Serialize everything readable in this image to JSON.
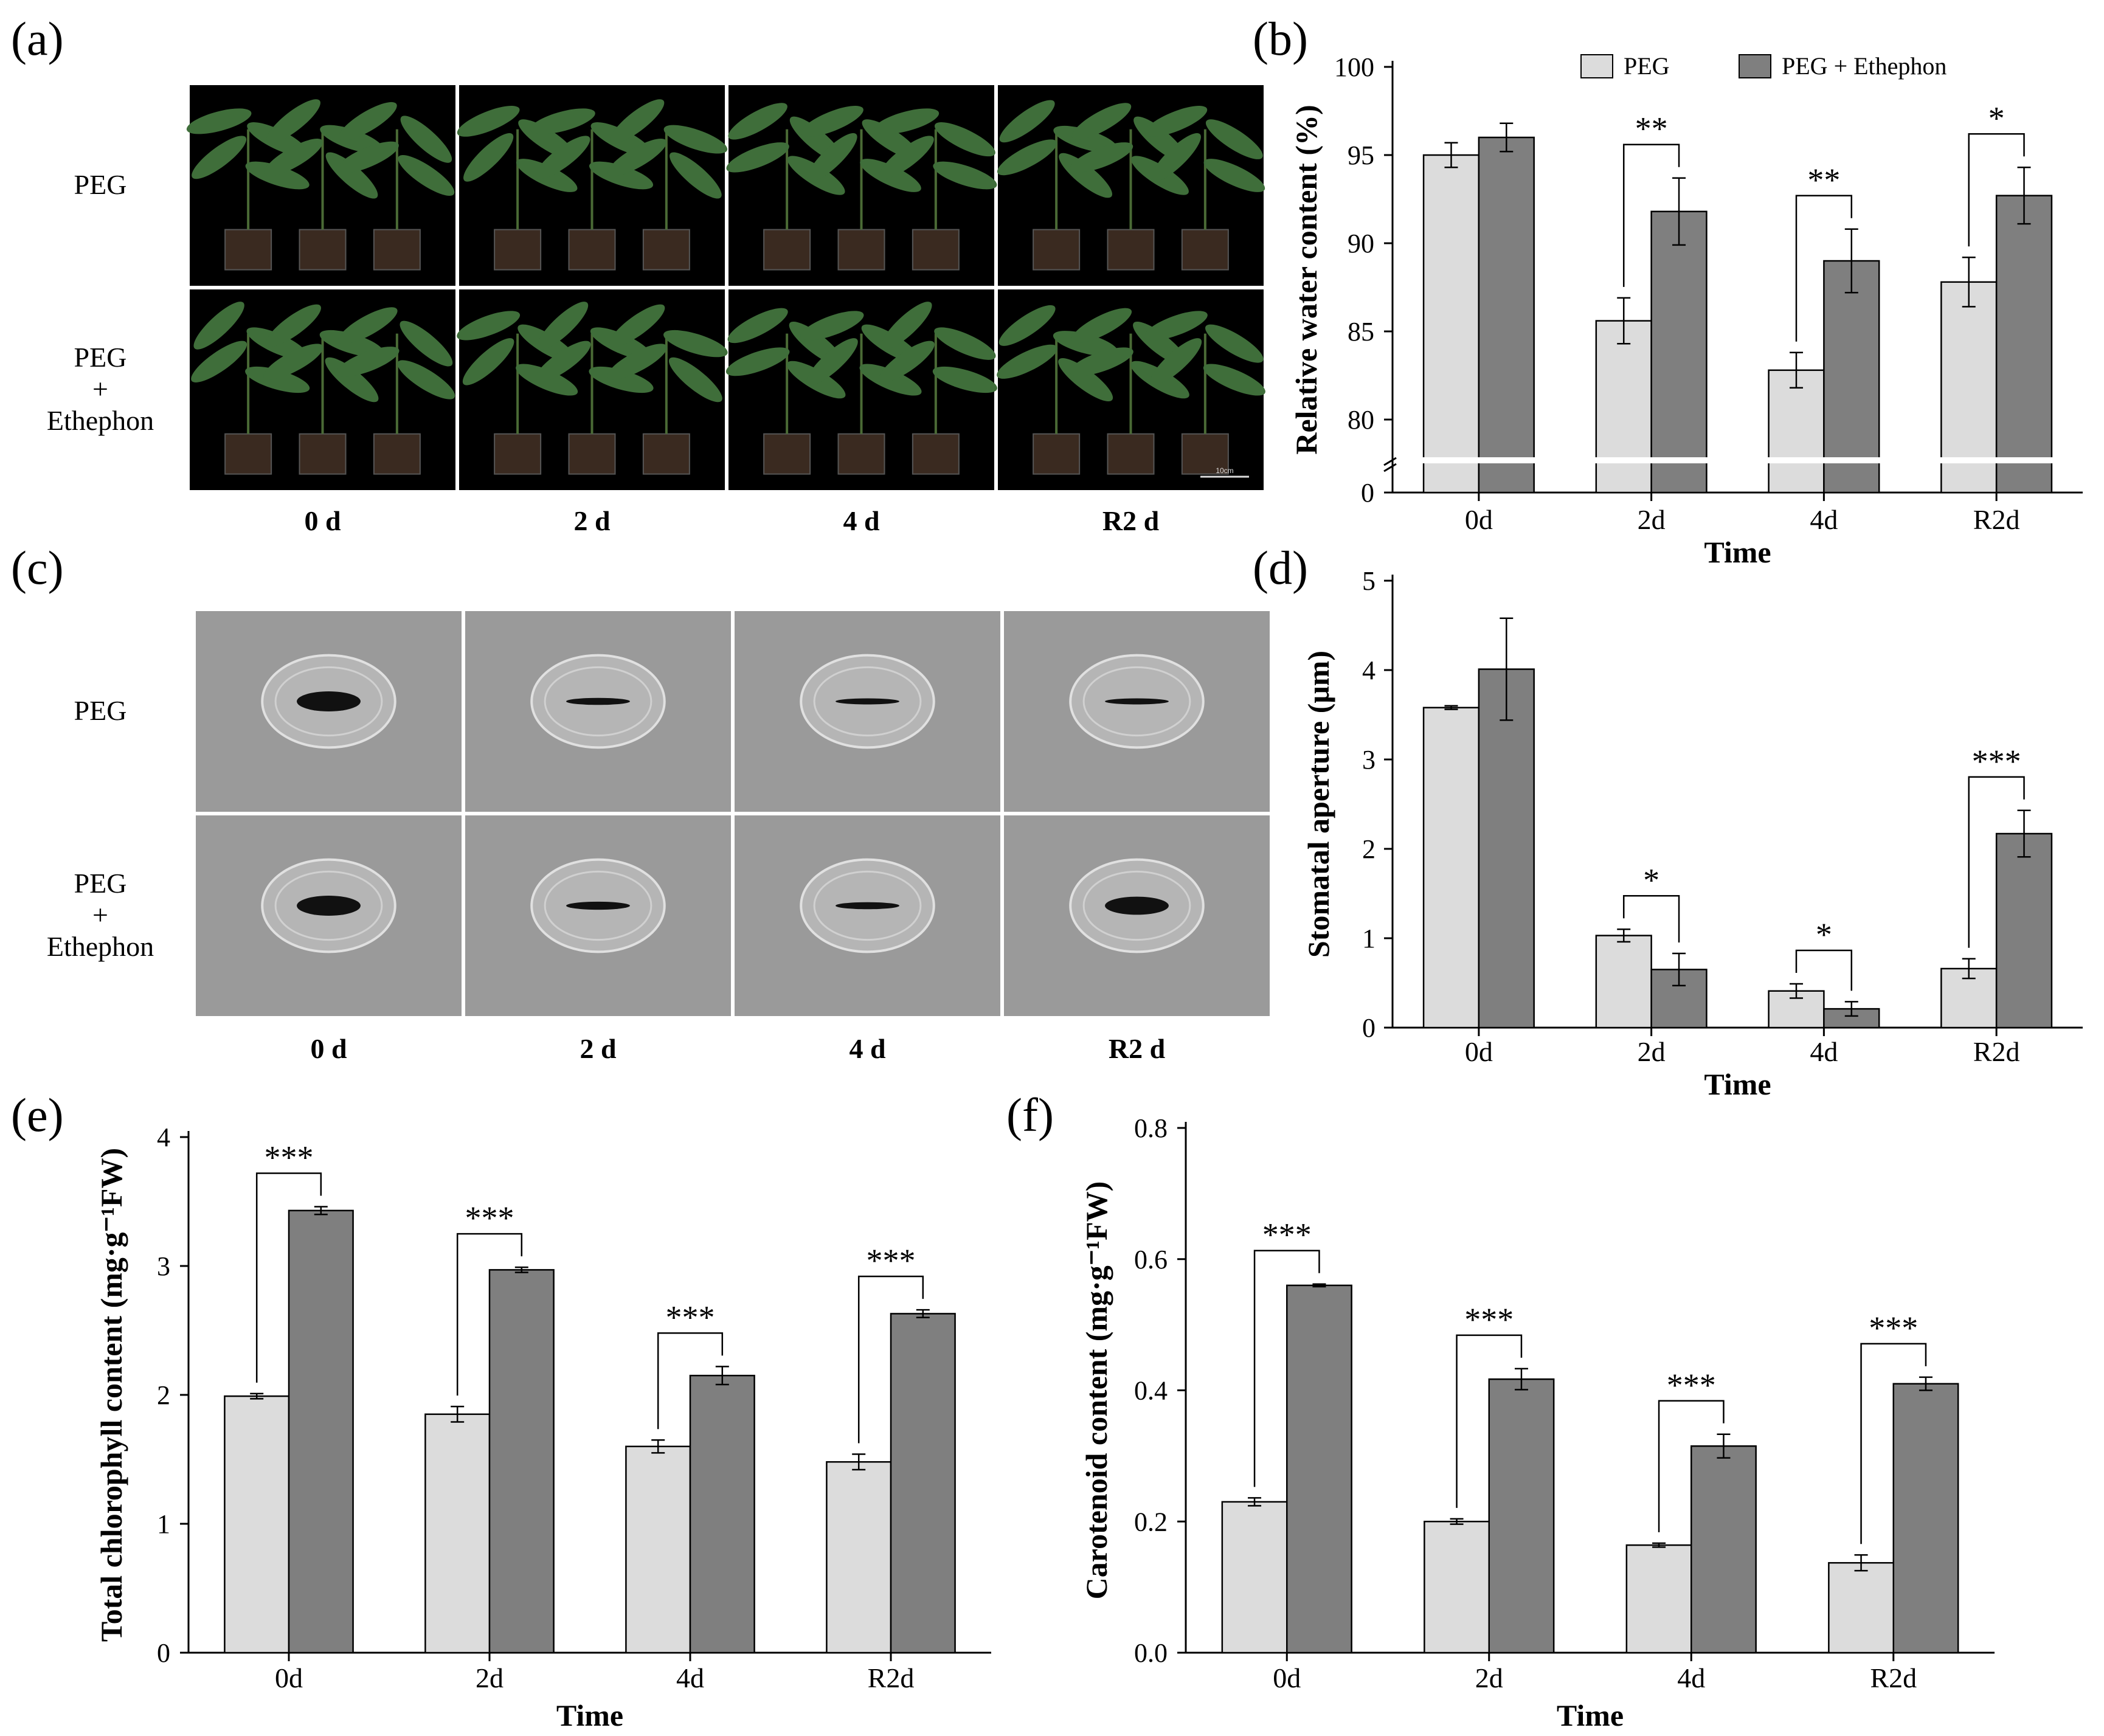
{
  "colors": {
    "peg": "#dcdcdc",
    "peg_ethephon": "#7f7f7f",
    "photo_bg": "#000000",
    "sem_bg": "#9a9a9a",
    "leaf": "#3f6e3a",
    "soil": "#3a2a20"
  },
  "photo_panels": [
    {
      "id": "a",
      "label": "(a)",
      "rows": [
        "PEG",
        "PEG\n+\nEthephon"
      ],
      "cols": [
        "0 d",
        "2 d",
        "4 d",
        "R2 d"
      ],
      "scale_bar": "10cm"
    },
    {
      "id": "c",
      "label": "(c)",
      "rows": [
        "PEG",
        "PEG\n+\nEthephon"
      ],
      "cols": [
        "0 d",
        "2 d",
        "4 d",
        "R2 d"
      ]
    }
  ],
  "chart_data": [
    {
      "id": "b",
      "label": "(b)",
      "type": "bar",
      "categories": [
        "0d",
        "2d",
        "4d",
        "R2d"
      ],
      "series": [
        {
          "name": "PEG",
          "values": [
            95.0,
            85.6,
            82.8,
            87.8
          ],
          "errors": [
            0.7,
            1.3,
            1.0,
            1.4
          ]
        },
        {
          "name": "PEG + Ethephon",
          "values": [
            96.0,
            91.8,
            89.0,
            92.7
          ],
          "errors": [
            0.8,
            1.9,
            1.8,
            1.6
          ]
        }
      ],
      "significance": [
        "",
        "**",
        "**",
        "*"
      ],
      "xlabel": "Time",
      "ylabel": "Relative water content (%)",
      "ylim": [
        78,
        100
      ],
      "yticks": [
        "100",
        "95",
        "90",
        "85",
        "80"
      ],
      "axis_break": true,
      "break_zero_label": "0",
      "legend": true
    },
    {
      "id": "d",
      "label": "(d)",
      "type": "bar",
      "categories": [
        "0d",
        "2d",
        "4d",
        "R2d"
      ],
      "series": [
        {
          "name": "PEG",
          "values": [
            3.58,
            1.03,
            0.41,
            0.66
          ],
          "errors": [
            0.02,
            0.07,
            0.08,
            0.11
          ]
        },
        {
          "name": "PEG + Ethephon",
          "values": [
            4.01,
            0.65,
            0.21,
            2.17
          ],
          "errors": [
            0.57,
            0.18,
            0.08,
            0.26
          ]
        }
      ],
      "significance": [
        "",
        "*",
        "*",
        "***"
      ],
      "xlabel": "Time",
      "ylabel": "Stomatal aperture (μm)",
      "ylim": [
        0,
        5
      ],
      "yticks": [
        "0",
        "1",
        "2",
        "3",
        "4",
        "5"
      ]
    },
    {
      "id": "e",
      "label": "(e)",
      "type": "bar",
      "categories": [
        "0d",
        "2d",
        "4d",
        "R2d"
      ],
      "series": [
        {
          "name": "PEG",
          "values": [
            1.99,
            1.85,
            1.6,
            1.48
          ],
          "errors": [
            0.02,
            0.06,
            0.05,
            0.06
          ]
        },
        {
          "name": "PEG + Ethephon",
          "values": [
            3.43,
            2.97,
            2.15,
            2.63
          ],
          "errors": [
            0.03,
            0.02,
            0.07,
            0.03
          ]
        }
      ],
      "significance": [
        "***",
        "***",
        "***",
        "***"
      ],
      "xlabel": "Time",
      "ylabel": "Total chlorophyll content (mg·g⁻¹FW)",
      "ylim": [
        0,
        4
      ],
      "yticks": [
        "0",
        "1",
        "2",
        "3",
        "4"
      ]
    },
    {
      "id": "f",
      "label": "(f)",
      "type": "bar",
      "categories": [
        "0d",
        "2d",
        "4d",
        "R2d"
      ],
      "series": [
        {
          "name": "PEG",
          "values": [
            0.23,
            0.2,
            0.164,
            0.137
          ],
          "errors": [
            0.006,
            0.004,
            0.003,
            0.012
          ]
        },
        {
          "name": "PEG + Ethephon",
          "values": [
            0.56,
            0.417,
            0.315,
            0.41
          ],
          "errors": [
            0.002,
            0.016,
            0.018,
            0.01
          ]
        }
      ],
      "significance": [
        "***",
        "***",
        "***",
        "***"
      ],
      "xlabel": "Time",
      "ylabel": "Carotenoid content (mg·g⁻¹FW)",
      "ylim": [
        0,
        0.8
      ],
      "yticks": [
        "0.0",
        "0.2",
        "0.4",
        "0.6",
        "0.8"
      ]
    }
  ]
}
